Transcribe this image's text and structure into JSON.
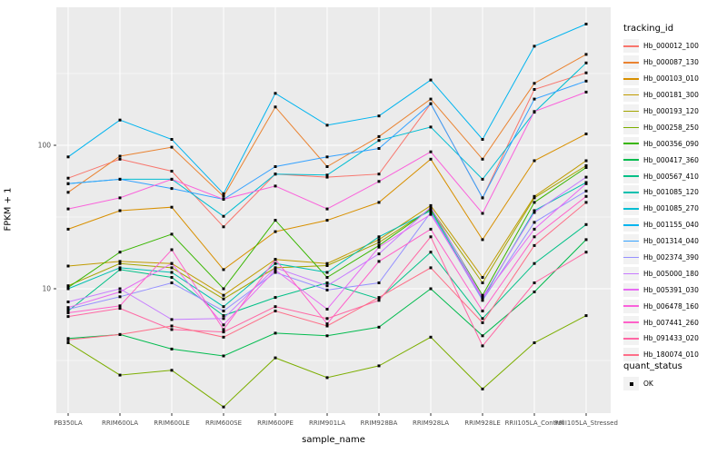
{
  "chart_data": {
    "type": "line",
    "title": "",
    "xlabel": "sample_name",
    "ylabel": "FPKM + 1",
    "y_scale": "log10",
    "ylim": [
      1.3,
      900
    ],
    "y_ticks": [
      {
        "label": "100",
        "value": 100
      },
      {
        "label": "10",
        "value": 10
      }
    ],
    "grid": "white major and minor gridlines on gray panel",
    "legend_position": "right",
    "point_shape": "filled black square (quant_status OK)",
    "categories": [
      "PB350LA",
      "RRIM600LA",
      "RRIM600LE",
      "RRIM600SE",
      "RRIM600PE",
      "RRIM901LA",
      "RRIM928BA",
      "RRIM928LA",
      "RRIM928LE",
      "RRII105LA_Control",
      "RRII105LA_Stressed"
    ],
    "series": [
      {
        "name": "Hb_000012_100",
        "color": "#F8766D",
        "values": [
          59,
          80,
          66,
          27,
          63,
          60,
          63,
          195,
          43,
          245,
          320
        ]
      },
      {
        "name": "Hb_000087_130",
        "color": "#EA8331",
        "values": [
          47,
          84,
          97,
          44,
          185,
          71,
          115,
          210,
          80,
          270,
          430
        ]
      },
      {
        "name": "Hb_000103_010",
        "color": "#D89000",
        "values": [
          26,
          35,
          37,
          13.6,
          25,
          30,
          40,
          80,
          22,
          78,
          120
        ]
      },
      {
        "name": "Hb_000181_300",
        "color": "#C09B00",
        "values": [
          14.4,
          15.5,
          15,
          9,
          16,
          15,
          22,
          38,
          12,
          44,
          78
        ]
      },
      {
        "name": "Hb_000193_120",
        "color": "#A3A500",
        "values": [
          10.5,
          15,
          14,
          8.5,
          14,
          14.5,
          21,
          36,
          11,
          43,
          72
        ]
      },
      {
        "name": "Hb_000258_250",
        "color": "#7CAE00",
        "values": [
          4.2,
          2.5,
          2.7,
          1.5,
          3.3,
          2.4,
          2.9,
          4.6,
          2.0,
          4.2,
          6.5
        ]
      },
      {
        "name": "Hb_000356_090",
        "color": "#39B600",
        "values": [
          10.2,
          18,
          24,
          10,
          30,
          12,
          20,
          36,
          9,
          40,
          70
        ]
      },
      {
        "name": "Hb_000417_360",
        "color": "#00BB4E",
        "values": [
          4.5,
          4.8,
          3.8,
          3.4,
          4.9,
          4.7,
          5.4,
          10,
          4.7,
          9.5,
          22
        ]
      },
      {
        "name": "Hb_000567_410",
        "color": "#00C087",
        "values": [
          7,
          13.6,
          12,
          6.5,
          8.7,
          11,
          8.5,
          18,
          6.2,
          15,
          28
        ]
      },
      {
        "name": "Hb_001085_120",
        "color": "#00C0AF",
        "values": [
          10,
          14,
          13,
          7.5,
          15,
          13,
          23,
          35,
          8.5,
          35,
          55
        ]
      },
      {
        "name": "Hb_001085_270",
        "color": "#00BDD2",
        "values": [
          54,
          58,
          58,
          32,
          63,
          62,
          108,
          134,
          58,
          170,
          375
        ]
      },
      {
        "name": "Hb_001155_040",
        "color": "#00B4EF",
        "values": [
          83,
          150,
          110,
          46,
          230,
          138,
          160,
          285,
          110,
          490,
          700
        ]
      },
      {
        "name": "Hb_001314_040",
        "color": "#35A2FF",
        "values": [
          54,
          58,
          50,
          42,
          71,
          83,
          95,
          195,
          43,
          210,
          280
        ]
      },
      {
        "name": "Hb_002374_390",
        "color": "#9590FF",
        "values": [
          7.2,
          8.8,
          11,
          7,
          13,
          9.8,
          11,
          34,
          8.3,
          29,
          48
        ]
      },
      {
        "name": "Hb_005000_180",
        "color": "#C77CFF",
        "values": [
          8.1,
          10,
          6.1,
          6.2,
          14,
          10.5,
          17.5,
          37,
          8.7,
          34,
          60
        ]
      },
      {
        "name": "Hb_005391_030",
        "color": "#E76BF3",
        "values": [
          7.4,
          9.5,
          15,
          5.6,
          13.5,
          7.2,
          19.5,
          33,
          8.6,
          26,
          54
        ]
      },
      {
        "name": "Hb_006478_160",
        "color": "#FA62DB",
        "values": [
          36,
          43,
          58,
          42,
          52,
          36,
          56,
          90,
          33.5,
          172,
          235
        ]
      },
      {
        "name": "Hb_007441_260",
        "color": "#FF61C9",
        "values": [
          6.8,
          7.6,
          18.7,
          5.2,
          16,
          5.7,
          15.5,
          26,
          7.0,
          23,
          44
        ]
      },
      {
        "name": "Hb_091433_020",
        "color": "#FF67A4",
        "values": [
          6.4,
          7.3,
          5.2,
          5.0,
          7.5,
          6.2,
          8.3,
          23,
          4.0,
          11,
          18
        ]
      },
      {
        "name": "Hb_180074_010",
        "color": "#FE6E88",
        "values": [
          4.4,
          4.8,
          5.5,
          4.6,
          7.0,
          5.5,
          8.7,
          14,
          5.8,
          20,
          40
        ]
      }
    ],
    "legends": {
      "tracking_id_title": "tracking_id",
      "quant_status_title": "quant_status",
      "quant_status_items": [
        {
          "label": "OK",
          "symbol": "black-square"
        }
      ]
    }
  },
  "style_colors": {
    "panel_background": "#EBEBEB",
    "gridline": "#FFFFFF",
    "tick_label": "#4D4D4D",
    "point": "#000000",
    "legend_key_background": "#F2F2F2",
    "page_background": "#FFFFFF"
  }
}
